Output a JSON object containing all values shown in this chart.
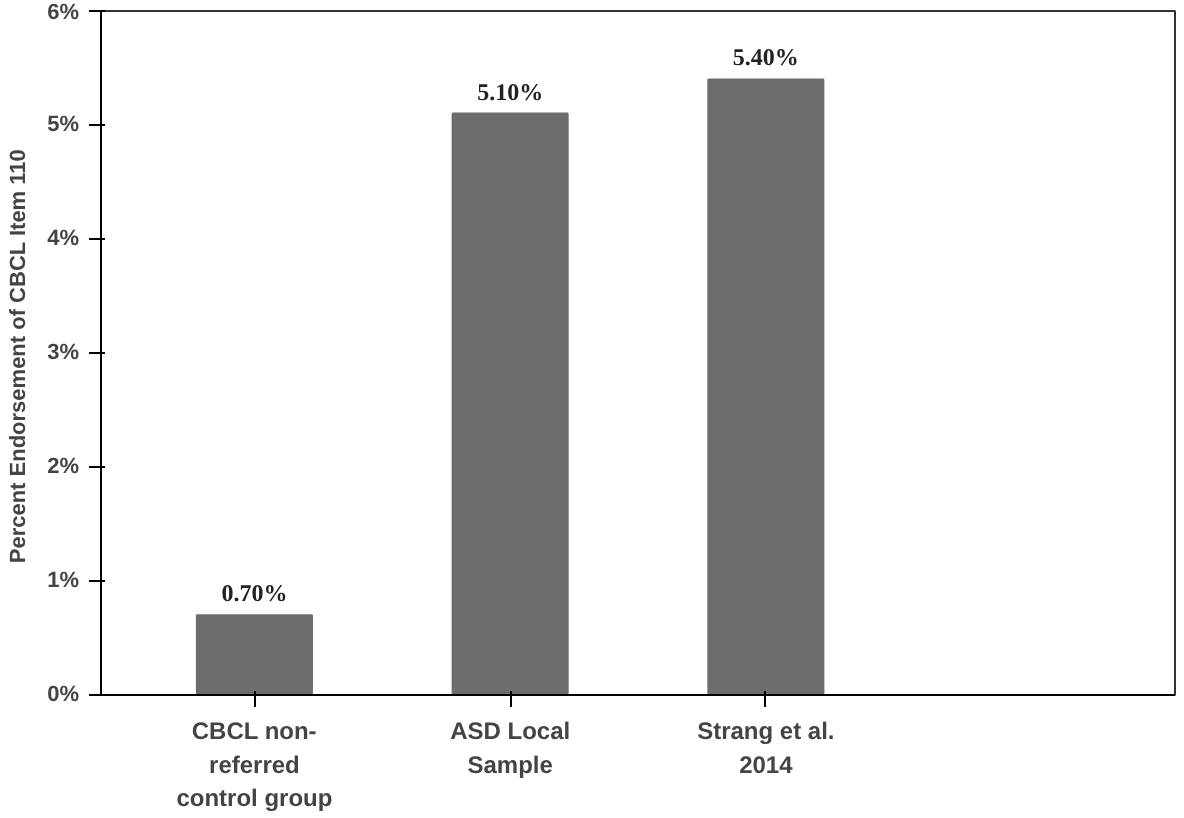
{
  "chart_data": {
    "type": "bar",
    "ylabel": "Percent Endorsement of  CBCL Item 110",
    "categories": [
      "CBCL non-referred control group",
      "ASD Local Sample",
      "Strang et al. 2014"
    ],
    "values": [
      0.7,
      5.1,
      5.4
    ],
    "value_labels": [
      "0.70%",
      "5.10%",
      "5.40%"
    ],
    "color": "#6d6d6d",
    "ylim": [
      0,
      6
    ],
    "yticks": [
      {
        "value": 0,
        "label": "0%"
      },
      {
        "value": 1,
        "label": "1%"
      },
      {
        "value": 2,
        "label": "2%"
      },
      {
        "value": 3,
        "label": "3%"
      },
      {
        "value": 4,
        "label": "4%"
      },
      {
        "value": 5,
        "label": "5%"
      },
      {
        "value": 6,
        "label": "6%"
      }
    ],
    "grid": false
  }
}
